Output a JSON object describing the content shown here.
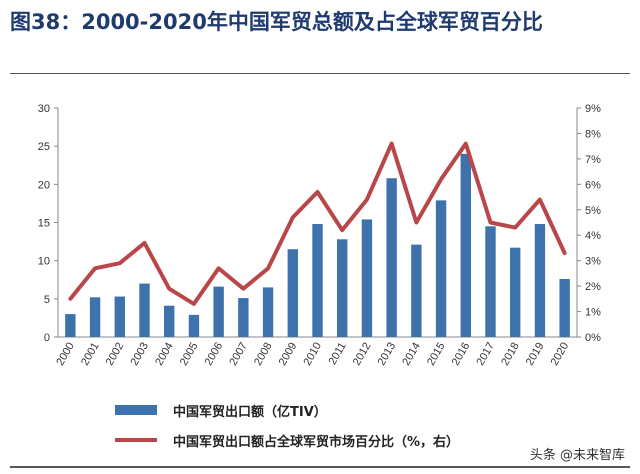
{
  "title": "图38：2000-2020年中国军贸总额及占全球军贸百分比",
  "watermark": "头条 @未来智库",
  "colors": {
    "bar": "#3d72ad",
    "line": "#b9474a",
    "title": "#1f3a6e"
  },
  "chart_data": {
    "type": "bar",
    "categories": [
      "2000",
      "2001",
      "2002",
      "2003",
      "2004",
      "2005",
      "2006",
      "2007",
      "2008",
      "2009",
      "2010",
      "2011",
      "2012",
      "2013",
      "2014",
      "2015",
      "2016",
      "2017",
      "2018",
      "2019",
      "2020"
    ],
    "series": [
      {
        "name": "中国军贸出口额（亿TIV）",
        "type": "bar",
        "axis": "left",
        "values": [
          3.0,
          5.2,
          5.3,
          7.0,
          4.1,
          2.9,
          6.6,
          5.1,
          6.5,
          11.5,
          14.8,
          12.8,
          15.4,
          20.8,
          12.1,
          17.9,
          24.0,
          14.5,
          11.7,
          14.8,
          7.6
        ]
      },
      {
        "name": "中国军贸出口额占全球军贸市场百分比（%，右）",
        "type": "line",
        "axis": "right",
        "values": [
          1.5,
          2.7,
          2.9,
          3.7,
          1.9,
          1.3,
          2.7,
          1.9,
          2.7,
          4.7,
          5.7,
          4.2,
          5.4,
          7.6,
          4.5,
          6.2,
          7.6,
          4.5,
          4.3,
          5.4,
          3.3
        ]
      }
    ],
    "y_left": {
      "ylim": [
        0,
        30
      ],
      "ticks": [
        "0",
        "5",
        "10",
        "15",
        "20",
        "25",
        "30"
      ]
    },
    "y_right": {
      "ylim": [
        0,
        9
      ],
      "ticks": [
        "0%",
        "1%",
        "2%",
        "3%",
        "4%",
        "5%",
        "6%",
        "7%",
        "8%",
        "9%"
      ]
    },
    "legend": {
      "bar_label": "中国军贸出口额（亿TIV）",
      "line_label": "中国军贸出口额占全球军贸市场百分比（%，右）",
      "position": "bottom"
    }
  }
}
